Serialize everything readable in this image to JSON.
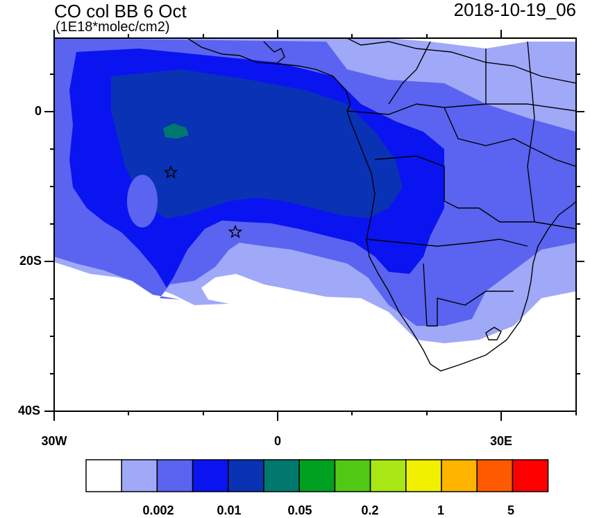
{
  "title": "CO col BB 6 Oct",
  "units": "(1E18*molec/cm2)",
  "datetime": "2018-10-19_06",
  "axes": {
    "lat_labels": [
      "0",
      "20S",
      "40S"
    ],
    "lon_labels": [
      "30W",
      "0",
      "30E"
    ]
  },
  "colorbar": {
    "colors": [
      "#ffffff",
      "#a0a8f8",
      "#5a64f0",
      "#0a14f0",
      "#0a32b4",
      "#00786e",
      "#00a020",
      "#50c814",
      "#a8e614",
      "#f0f000",
      "#ffb400",
      "#ff5a00",
      "#ff0000"
    ],
    "labels": [
      "0.002",
      "0.01",
      "0.05",
      "0.2",
      "1",
      "5"
    ]
  },
  "markers": [
    "star",
    "star"
  ],
  "colors": {
    "light_blue": "#a0a8f8",
    "mid_blue": "#5a64f0",
    "blue": "#0a14f0",
    "dark_blue": "#0a32b4",
    "teal": "#00786e",
    "coast": "#000000"
  }
}
